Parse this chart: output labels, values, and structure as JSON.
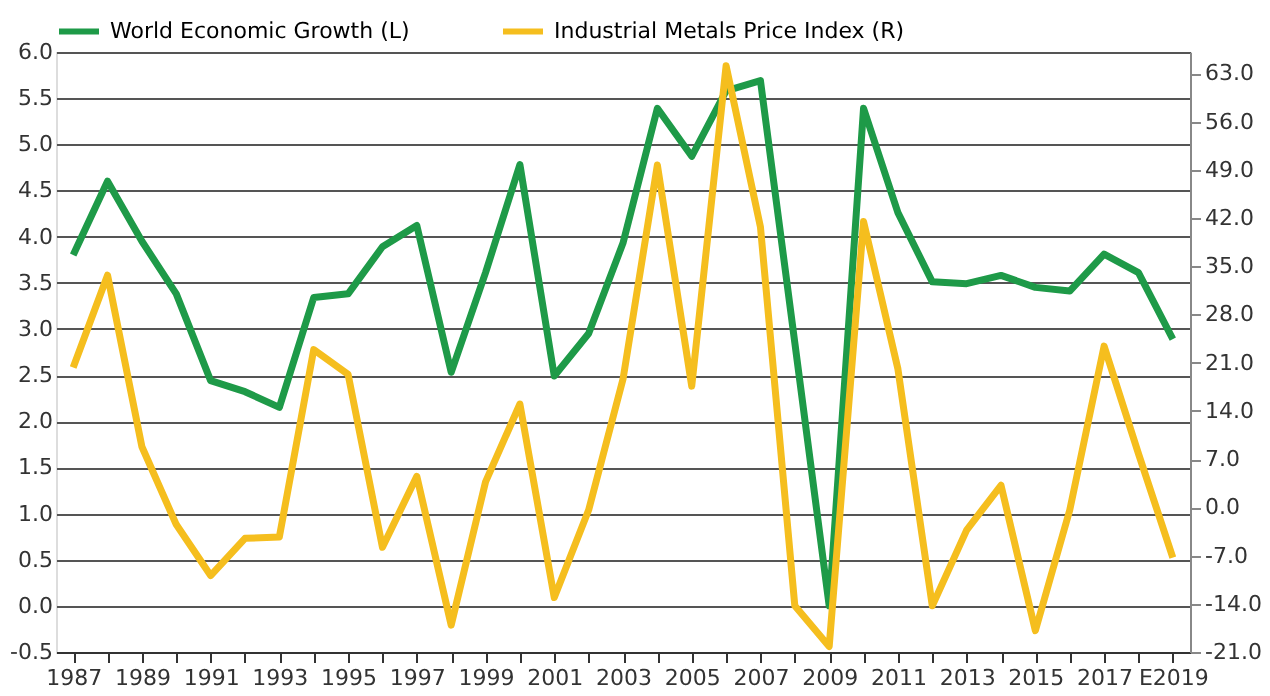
{
  "chart_data": {
    "type": "line",
    "categories": [
      "1987",
      null,
      "1989",
      null,
      "1991",
      null,
      "1993",
      null,
      "1995",
      null,
      "1997",
      null,
      "1999",
      null,
      "2001",
      null,
      "2003",
      null,
      "2005",
      null,
      "2007",
      null,
      "2009",
      null,
      "2011",
      null,
      "2013",
      null,
      "2015",
      null,
      "2017",
      null,
      "E2019"
    ],
    "series": [
      {
        "name": "World Economic Growth (L)",
        "color": "#1e9a48",
        "values": [
          3.8,
          4.6,
          3.95,
          3.38,
          2.44,
          2.32,
          2.15,
          3.34,
          3.38,
          3.89,
          4.12,
          2.53,
          3.61,
          4.78,
          2.49,
          2.95,
          3.93,
          5.39,
          4.87,
          5.58,
          5.69,
          2.85,
          0.0,
          5.39,
          4.26,
          3.51,
          3.49,
          3.58,
          3.45,
          3.41,
          3.81,
          3.61,
          2.89
        ]
      },
      {
        "name": "Industrial Metals Price Index (R)",
        "color": "#f5be1e",
        "axis": "y2",
        "values": [
          20.3,
          33.7,
          8.8,
          -2.5,
          -9.9,
          -4.5,
          -4.3,
          22.9,
          19.3,
          -5.8,
          4.5,
          -17.1,
          3.7,
          15.0,
          -13.1,
          -0.4,
          18.6,
          49.7,
          17.6,
          64.1,
          40.7,
          -14.3,
          -20.2,
          41.5,
          20.1,
          -14.3,
          -3.3,
          3.2,
          -17.9,
          -0.4,
          23.4,
          7.8,
          -7.3
        ]
      }
    ],
    "ylim": [
      -0.5,
      6.0
    ],
    "yticks": [
      {
        "value": -0.5,
        "label": "-0.5"
      },
      {
        "value": 0,
        "label": "0.0"
      },
      {
        "value": 0.5,
        "label": "0.5"
      },
      {
        "value": 1,
        "label": "1.0"
      },
      {
        "value": 1.5,
        "label": "1.5"
      },
      {
        "value": 2,
        "label": "2.0"
      },
      {
        "value": 2.5,
        "label": "2.5"
      },
      {
        "value": 3,
        "label": "3.0"
      },
      {
        "value": 3.5,
        "label": "3.5"
      },
      {
        "value": 4,
        "label": "4.0"
      },
      {
        "value": 4.5,
        "label": "4.5"
      },
      {
        "value": 5,
        "label": "5.0"
      },
      {
        "value": 5.5,
        "label": "5.5"
      },
      {
        "value": 6,
        "label": "6.0"
      }
    ],
    "y2lim": [
      -21.0,
      66.1
    ],
    "y2ticks": [
      {
        "value": -21,
        "label": "-21.0"
      },
      {
        "value": -14,
        "label": "-14.0"
      },
      {
        "value": -7,
        "label": "-7.0"
      },
      {
        "value": 0,
        "label": "0.0"
      },
      {
        "value": 7,
        "label": "7.0"
      },
      {
        "value": 14,
        "label": "14.0"
      },
      {
        "value": 21,
        "label": "21.0"
      },
      {
        "value": 28,
        "label": "28.0"
      },
      {
        "value": 35,
        "label": "35.0"
      },
      {
        "value": 42,
        "label": "42.0"
      },
      {
        "value": 49,
        "label": "49.0"
      },
      {
        "value": 56,
        "label": "56.0"
      },
      {
        "value": 63,
        "label": "63.0"
      }
    ],
    "grid": "y",
    "legend": "top",
    "marker": "none",
    "line_style": "solid"
  }
}
